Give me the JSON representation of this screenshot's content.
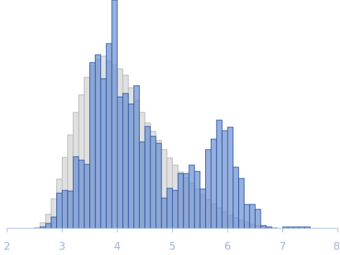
{
  "chart_data": {
    "type": "histogram",
    "xlim": [
      2,
      8
    ],
    "xticks": [
      2,
      3,
      4,
      5,
      6,
      7,
      8
    ],
    "ylim": [
      0,
      325
    ],
    "series": [
      {
        "color": "#dddddd",
        "bins": [
          2.5,
          2.6,
          2.7,
          2.8,
          2.9,
          3.0,
          3.1,
          3.2,
          3.3,
          3.4,
          3.5,
          3.6,
          3.7,
          3.8,
          3.9,
          4.0,
          4.1,
          4.2,
          4.3,
          4.4,
          4.5,
          4.6,
          4.7,
          4.8,
          4.9,
          5.0,
          5.1,
          5.2,
          5.3,
          5.4,
          5.5,
          5.6,
          5.7,
          5.8,
          5.9,
          6.0,
          6.1,
          6.2,
          6.3,
          6.4,
          6.5,
          6.6,
          6.7,
          6.8,
          6.9
        ],
        "values": [
          1,
          8,
          20,
          42,
          70,
          101,
          133,
          165,
          190,
          215,
          232,
          240,
          245,
          238,
          233,
          227,
          218,
          200,
          182,
          165,
          150,
          138,
          125,
          112,
          100,
          90,
          80,
          72,
          64,
          56,
          48,
          41,
          35,
          29,
          24,
          19,
          15,
          12,
          9,
          6,
          4,
          3,
          2,
          1
        ]
      },
      {
        "color": "#6a8fce",
        "bins": [
          2.6,
          2.7,
          2.8,
          2.9,
          3.0,
          3.1,
          3.2,
          3.3,
          3.4,
          3.5,
          3.6,
          3.7,
          3.8,
          3.9,
          4.0,
          4.1,
          4.2,
          4.3,
          4.4,
          4.5,
          4.6,
          4.7,
          4.8,
          4.9,
          5.0,
          5.1,
          5.2,
          5.3,
          5.4,
          5.5,
          5.6,
          5.7,
          5.8,
          5.9,
          6.0,
          6.1,
          6.2,
          6.3,
          6.4,
          6.5,
          6.6,
          6.7,
          6.8,
          6.9,
          7.0,
          7.1,
          7.2,
          7.3,
          7.4,
          7.5
        ],
        "values": [
          2,
          7,
          16,
          50,
          54,
          53,
          102,
          97,
          91,
          236,
          247,
          213,
          263,
          325,
          187,
          192,
          177,
          203,
          123,
          145,
          131,
          121,
          43,
          57,
          54,
          78,
          78,
          90,
          81,
          56,
          112,
          127,
          154,
          139,
          144,
          87,
          71,
          34,
          34,
          27,
          4,
          2,
          0,
          0,
          2,
          2,
          2,
          2,
          2
        ]
      }
    ]
  }
}
